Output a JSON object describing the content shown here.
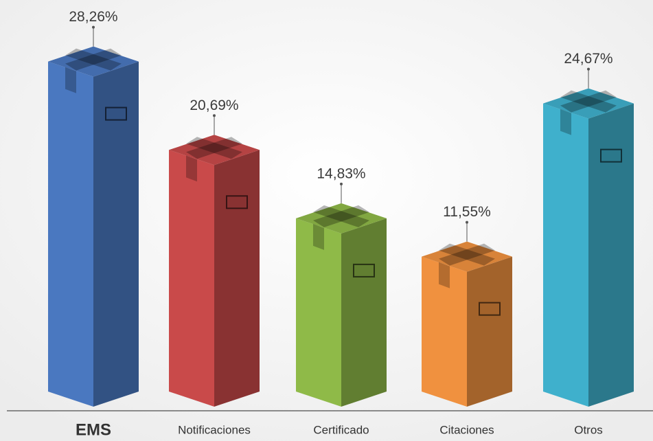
{
  "chart_data": {
    "type": "bar",
    "categories": [
      "EMS",
      "Notificaciones",
      "Certificado",
      "Citaciones",
      "Otros"
    ],
    "values": [
      28.26,
      20.69,
      14.83,
      11.55,
      24.67
    ],
    "value_labels": [
      "28,26%",
      "20,69%",
      "14,83%",
      "11,55%",
      "24,67%"
    ],
    "colors": [
      "#4a78c0",
      "#c94a4a",
      "#8fba48",
      "#f0913f",
      "#3fb0cc"
    ]
  }
}
